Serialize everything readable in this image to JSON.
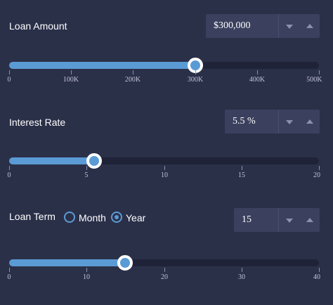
{
  "loan_amount": {
    "label": "Loan Amount",
    "value": "$300,000",
    "slider_fraction": 0.6,
    "ticks": [
      "0",
      "100K",
      "200K",
      "300K",
      "400K",
      "500K"
    ]
  },
  "interest_rate": {
    "label": "Interest Rate",
    "value": "5.5 %",
    "slider_fraction": 0.275,
    "ticks": [
      "0",
      "5",
      "10",
      "15",
      "20"
    ]
  },
  "loan_term": {
    "label": "Loan Term",
    "value": "15",
    "slider_fraction": 0.375,
    "ticks": [
      "0",
      "10",
      "20",
      "30",
      "40"
    ],
    "options": [
      {
        "label": "Month",
        "selected": false
      },
      {
        "label": "Year",
        "selected": true
      }
    ]
  },
  "colors": {
    "background": "#2b3049",
    "accent": "#5b9bd5",
    "track": "#1f2338"
  }
}
